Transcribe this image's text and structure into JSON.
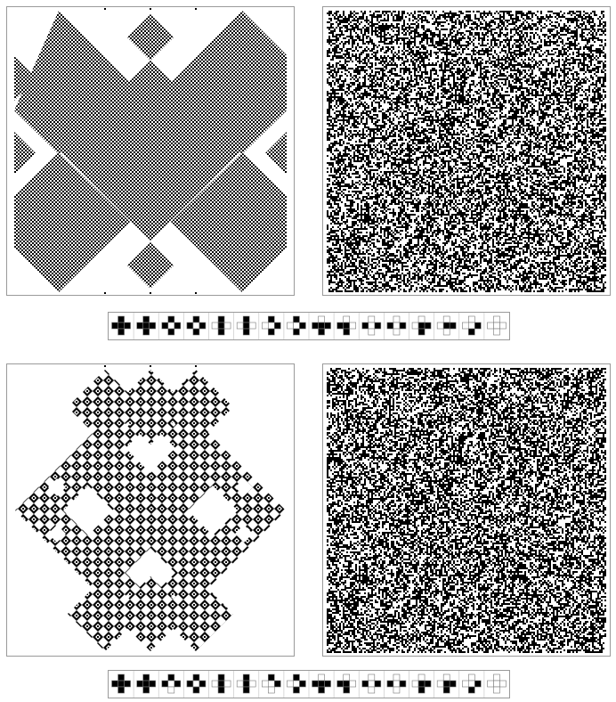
{
  "figure": {
    "colors": {
      "cell_on": "#000000",
      "cell_off": "#ffffff",
      "frame": "#9a9a9a"
    },
    "rows": [
      {
        "name": "row-a",
        "rule_neighborhoods": [
          {
            "up": 1,
            "left": 1,
            "center": 1,
            "right": 1,
            "down": 1
          },
          {
            "up": 1,
            "left": 1,
            "center": 1,
            "right": 1,
            "down": 0
          },
          {
            "up": 1,
            "left": 1,
            "center": 0,
            "right": 1,
            "down": 1
          },
          {
            "up": 1,
            "left": 1,
            "center": 0,
            "right": 1,
            "down": 0
          },
          {
            "up": 1,
            "left": 0,
            "center": 1,
            "right": 0,
            "down": 1
          },
          {
            "up": 1,
            "left": 0,
            "center": 1,
            "right": 0,
            "down": 0
          },
          {
            "up": 1,
            "left": 0,
            "center": 0,
            "right": 1,
            "down": 1
          },
          {
            "up": 1,
            "left": 0,
            "center": 0,
            "right": 1,
            "down": 0
          },
          {
            "up": 0,
            "left": 1,
            "center": 1,
            "right": 1,
            "down": 0
          },
          {
            "up": 0,
            "left": 1,
            "center": 1,
            "right": 0,
            "down": 1
          },
          {
            "up": 0,
            "left": 1,
            "center": 0,
            "right": 1,
            "down": 1
          },
          {
            "up": 0,
            "left": 1,
            "center": 0,
            "right": 1,
            "down": 0
          },
          {
            "up": 0,
            "left": 0,
            "center": 1,
            "right": 1,
            "down": 1
          },
          {
            "up": 0,
            "left": 0,
            "center": 1,
            "right": 1,
            "down": 0
          },
          {
            "up": 0,
            "left": 0,
            "center": 0,
            "right": 1,
            "down": 1
          },
          {
            "up": 0,
            "left": 0,
            "center": 0,
            "right": 0,
            "down": 0
          }
        ],
        "rule_outputs": [
          1,
          1,
          1,
          1,
          1,
          1,
          1,
          1,
          1,
          1,
          0,
          0,
          1,
          0,
          1,
          0
        ]
      },
      {
        "name": "row-b",
        "rule_neighborhoods": [
          {
            "up": 1,
            "left": 1,
            "center": 1,
            "right": 1,
            "down": 1
          },
          {
            "up": 1,
            "left": 1,
            "center": 1,
            "right": 1,
            "down": 0
          },
          {
            "up": 1,
            "left": 1,
            "center": 0,
            "right": 1,
            "down": 1
          },
          {
            "up": 1,
            "left": 1,
            "center": 0,
            "right": 1,
            "down": 0
          },
          {
            "up": 1,
            "left": 0,
            "center": 1,
            "right": 0,
            "down": 1
          },
          {
            "up": 1,
            "left": 0,
            "center": 1,
            "right": 0,
            "down": 0
          },
          {
            "up": 1,
            "left": 0,
            "center": 0,
            "right": 1,
            "down": 1
          },
          {
            "up": 1,
            "left": 0,
            "center": 0,
            "right": 1,
            "down": 0
          },
          {
            "up": 0,
            "left": 1,
            "center": 1,
            "right": 1,
            "down": 1
          },
          {
            "up": 0,
            "left": 1,
            "center": 1,
            "right": 0,
            "down": 1
          },
          {
            "up": 0,
            "left": 1,
            "center": 0,
            "right": 1,
            "down": 1
          },
          {
            "up": 0,
            "left": 1,
            "center": 0,
            "right": 1,
            "down": 0
          },
          {
            "up": 0,
            "left": 0,
            "center": 1,
            "right": 1,
            "down": 0
          },
          {
            "up": 0,
            "left": 0,
            "center": 1,
            "right": 1,
            "down": 1
          },
          {
            "up": 0,
            "left": 0,
            "center": 0,
            "right": 1,
            "down": 1
          },
          {
            "up": 0,
            "left": 0,
            "center": 0,
            "right": 0,
            "down": 0
          }
        ],
        "rule_outputs": [
          1,
          1,
          0,
          1,
          1,
          1,
          0,
          1,
          1,
          1,
          0,
          0,
          1,
          1,
          1,
          0
        ]
      }
    ]
  }
}
